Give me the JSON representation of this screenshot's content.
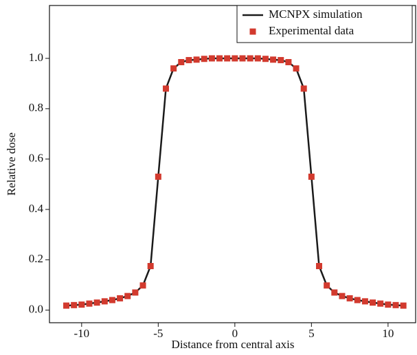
{
  "chart_data": {
    "type": "line+scatter",
    "xlabel": "Distance from central axis",
    "ylabel": "Relative dose",
    "x": [
      -11,
      -10.5,
      -10,
      -9.5,
      -9,
      -8.5,
      -8,
      -7.5,
      -7,
      -6.5,
      -6,
      -5.5,
      -5,
      -4.5,
      -4,
      -3.5,
      -3,
      -2.5,
      -2,
      -1.5,
      -1,
      -0.5,
      0,
      0.5,
      1,
      1.5,
      2,
      2.5,
      3,
      3.5,
      4,
      4.5,
      5,
      5.5,
      6,
      6.5,
      7,
      7.5,
      8,
      8.5,
      9,
      9.5,
      10,
      10.5,
      11
    ],
    "series": [
      {
        "name": "MCNPX simulation",
        "color": "#1a1a1a",
        "kind": "line",
        "values": [
          0.018,
          0.02,
          0.022,
          0.026,
          0.03,
          0.035,
          0.04,
          0.047,
          0.056,
          0.07,
          0.098,
          0.175,
          0.53,
          0.88,
          0.96,
          0.985,
          0.993,
          0.995,
          0.998,
          1.0,
          1.0,
          1.0,
          1.0,
          1.0,
          1.0,
          1.0,
          0.998,
          0.995,
          0.993,
          0.985,
          0.96,
          0.88,
          0.53,
          0.175,
          0.098,
          0.07,
          0.056,
          0.047,
          0.04,
          0.035,
          0.03,
          0.026,
          0.022,
          0.02,
          0.018
        ]
      },
      {
        "name": "Experimental data",
        "color": "#d23a2e",
        "kind": "scatter",
        "values": [
          0.018,
          0.02,
          0.022,
          0.026,
          0.03,
          0.035,
          0.04,
          0.047,
          0.056,
          0.07,
          0.098,
          0.175,
          0.53,
          0.88,
          0.96,
          0.985,
          0.993,
          0.995,
          0.998,
          1.0,
          1.0,
          1.0,
          1.0,
          1.0,
          1.0,
          1.0,
          0.998,
          0.995,
          0.993,
          0.985,
          0.96,
          0.88,
          0.53,
          0.175,
          0.098,
          0.07,
          0.056,
          0.047,
          0.04,
          0.035,
          0.03,
          0.026,
          0.022,
          0.02,
          0.018
        ]
      }
    ],
    "xlim": [
      -12.1,
      11.8
    ],
    "ylim": [
      -0.05,
      1.21
    ],
    "xticks": [
      -10,
      -5,
      0,
      5,
      10
    ],
    "yticks": [
      {
        "value": 0,
        "label": "0.0"
      },
      0.2,
      0.4,
      0.6,
      0.8,
      {
        "value": 1,
        "label": "1.0"
      }
    ],
    "legend": "upper right"
  }
}
